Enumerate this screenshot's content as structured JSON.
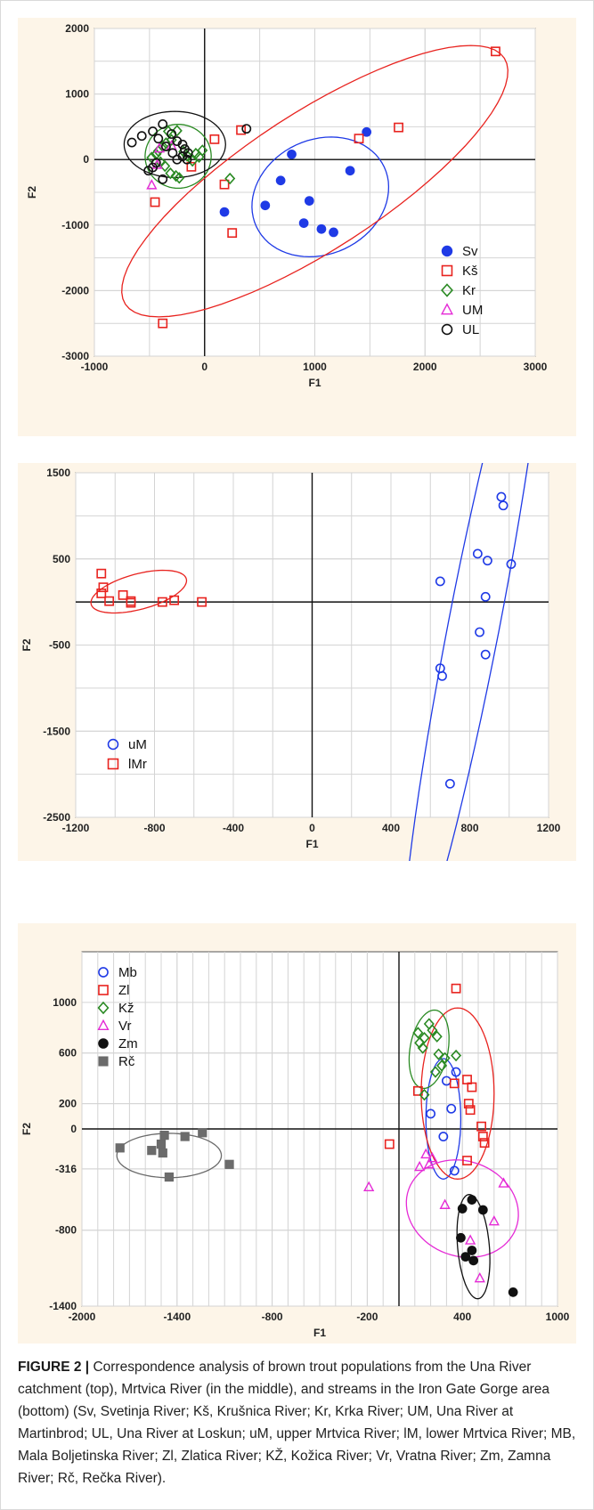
{
  "colors": {
    "Sv": "#1f3ae6",
    "Kš": "#e8231f",
    "Kr": "#2a8a23",
    "UM": "#e52bd6",
    "UL": "#111111",
    "uM": "#1f3ae6",
    "lMr": "#e8231f",
    "Mb": "#1f3ae6",
    "Zl": "#e8231f",
    "Kž": "#2a8a23",
    "Vr": "#e52bd6",
    "Zm": "#111111",
    "Rč": "#6b6b6b"
  },
  "chart_data": [
    {
      "type": "scatter",
      "xlabel": "F1",
      "ylabel": "F2",
      "xlim": [
        -1000,
        3000
      ],
      "ylim": [
        -3000,
        2000
      ],
      "xticks": [
        -1000,
        0,
        1000,
        2000,
        3000
      ],
      "yticks": [
        -3000,
        -2000,
        -1000,
        0,
        1000,
        2000
      ],
      "legend_position": "bottom-right",
      "series": [
        {
          "name": "Sv",
          "marker": "circle-filled",
          "points": [
            [
              1470,
              420
            ],
            [
              1320,
              -170
            ],
            [
              790,
              80
            ],
            [
              690,
              -320
            ],
            [
              550,
              -700
            ],
            [
              950,
              -630
            ],
            [
              900,
              -970
            ],
            [
              1060,
              -1060
            ],
            [
              1170,
              -1110
            ],
            [
              180,
              -800
            ]
          ],
          "ellipse": {
            "cx": 1050,
            "cy": -570,
            "rx": 640,
            "ry": 520,
            "angle": -25
          }
        },
        {
          "name": "Kš",
          "marker": "square-open",
          "points": [
            [
              2640,
              1650
            ],
            [
              1760,
              490
            ],
            [
              1400,
              320
            ],
            [
              330,
              450
            ],
            [
              90,
              310
            ],
            [
              -120,
              -110
            ],
            [
              -450,
              -650
            ],
            [
              180,
              -380
            ],
            [
              250,
              -1120
            ],
            [
              -380,
              -2500
            ]
          ],
          "ellipse": {
            "cx": 1000,
            "cy": -330,
            "rx": 2050,
            "ry": 620,
            "angle": -33
          }
        },
        {
          "name": "Kr",
          "marker": "diamond-open",
          "points": [
            [
              -250,
              440
            ],
            [
              -300,
              300
            ],
            [
              -350,
              250
            ],
            [
              -380,
              200
            ],
            [
              -420,
              130
            ],
            [
              -440,
              80
            ],
            [
              -480,
              30
            ],
            [
              -400,
              -40
            ],
            [
              -360,
              -100
            ],
            [
              -310,
              -210
            ],
            [
              -260,
              -250
            ],
            [
              -230,
              -280
            ],
            [
              -190,
              120
            ],
            [
              -160,
              60
            ],
            [
              -110,
              -20
            ],
            [
              -80,
              90
            ],
            [
              -50,
              40
            ],
            [
              -20,
              140
            ],
            [
              230,
              -290
            ],
            [
              -330,
              430
            ]
          ],
          "ellipse": {
            "cx": -240,
            "cy": 50,
            "rx": 300,
            "ry": 290,
            "angle": 0
          }
        },
        {
          "name": "UM",
          "marker": "triangle-open",
          "points": [
            [
              -480,
              -390
            ],
            [
              -430,
              -80
            ],
            [
              -410,
              170
            ],
            [
              -300,
              210
            ]
          ],
          "ellipse": null
        },
        {
          "name": "UL",
          "marker": "circle-open",
          "points": [
            [
              -660,
              260
            ],
            [
              -570,
              360
            ],
            [
              -470,
              430
            ],
            [
              -380,
              540
            ],
            [
              -300,
              390
            ],
            [
              -250,
              280
            ],
            [
              -200,
              230
            ],
            [
              -180,
              160
            ],
            [
              -150,
              100
            ],
            [
              -420,
              320
            ],
            [
              -350,
              200
            ],
            [
              -290,
              100
            ],
            [
              -200,
              50
            ],
            [
              -160,
              0
            ],
            [
              -440,
              -50
            ],
            [
              -470,
              -120
            ],
            [
              -380,
              -300
            ],
            [
              380,
              470
            ],
            [
              -510,
              -170
            ],
            [
              -250,
              0
            ]
          ],
          "ellipse": {
            "cx": -270,
            "cy": 230,
            "rx": 460,
            "ry": 300,
            "angle": 0
          }
        }
      ]
    },
    {
      "type": "scatter",
      "xlabel": "F1",
      "ylabel": "F2",
      "xlim": [
        -1200,
        1200
      ],
      "ylim": [
        -2500,
        1500
      ],
      "xticks": [
        -1200,
        -800,
        -400,
        0,
        400,
        800,
        1200
      ],
      "yticks": [
        -2500,
        -1500,
        -500,
        500,
        1500
      ],
      "legend_position": "bottom-left",
      "series": [
        {
          "name": "uM",
          "marker": "circle-open",
          "points": [
            [
              960,
              1220
            ],
            [
              970,
              1120
            ],
            [
              840,
              560
            ],
            [
              890,
              480
            ],
            [
              1010,
              440
            ],
            [
              650,
              240
            ],
            [
              880,
              60
            ],
            [
              850,
              -350
            ],
            [
              880,
              -610
            ],
            [
              650,
              -770
            ],
            [
              660,
              -860
            ],
            [
              700,
              -2110
            ]
          ],
          "ellipse": {
            "cx": 820,
            "cy": -280,
            "rx": 1750,
            "ry": 130,
            "angle": -79
          }
        },
        {
          "name": "lMr",
          "marker": "square-open",
          "points": [
            [
              -1070,
              330
            ],
            [
              -1060,
              170
            ],
            [
              -1070,
              100
            ],
            [
              -1030,
              10
            ],
            [
              -960,
              80
            ],
            [
              -920,
              10
            ],
            [
              -920,
              -10
            ],
            [
              -760,
              0
            ],
            [
              -700,
              20
            ],
            [
              -560,
              0
            ]
          ],
          "ellipse": {
            "cx": -880,
            "cy": 120,
            "rx": 250,
            "ry": 90,
            "angle": -15
          }
        }
      ]
    },
    {
      "type": "scatter",
      "xlabel": "F1",
      "ylabel": "F2",
      "xlim": [
        -2000,
        1000
      ],
      "ylim": [
        -1400,
        1400
      ],
      "xticks": [
        -2000,
        -1400,
        -800,
        -200,
        400,
        1000
      ],
      "ytick_labels": [
        "1000",
        "600",
        "200",
        "0",
        "-316",
        "-800",
        "-1400"
      ],
      "yticks": [
        1000,
        600,
        200,
        0,
        -316,
        -800,
        -1400
      ],
      "legend_position": "top-left",
      "series": [
        {
          "name": "Mb",
          "marker": "circle-open",
          "points": [
            [
              360,
              450
            ],
            [
              300,
              380
            ],
            [
              200,
              120
            ],
            [
              280,
              -60
            ],
            [
              350,
              -330
            ],
            [
              330,
              160
            ]
          ],
          "ellipse": {
            "cx": 280,
            "cy": 80,
            "rx": 110,
            "ry": 380,
            "angle": 0
          }
        },
        {
          "name": "Zl",
          "marker": "square-open",
          "points": [
            [
              360,
              1110
            ],
            [
              430,
              390
            ],
            [
              460,
              330
            ],
            [
              440,
              200
            ],
            [
              450,
              150
            ],
            [
              520,
              20
            ],
            [
              530,
              -60
            ],
            [
              540,
              -110
            ],
            [
              430,
              -250
            ],
            [
              -60,
              -120
            ],
            [
              120,
              300
            ],
            [
              350,
              360
            ]
          ],
          "ellipse": {
            "cx": 370,
            "cy": 280,
            "rx": 230,
            "ry": 540,
            "angle": 0
          }
        },
        {
          "name": "Kž",
          "marker": "diamond-open",
          "points": [
            [
              120,
              760
            ],
            [
              130,
              680
            ],
            [
              150,
              640
            ],
            [
              160,
              720
            ],
            [
              190,
              830
            ],
            [
              210,
              780
            ],
            [
              240,
              730
            ],
            [
              250,
              590
            ],
            [
              290,
              560
            ],
            [
              270,
              500
            ],
            [
              360,
              580
            ],
            [
              230,
              450
            ],
            [
              160,
              270
            ]
          ],
          "ellipse": {
            "cx": 190,
            "cy": 630,
            "rx": 120,
            "ry": 250,
            "angle": 10
          }
        },
        {
          "name": "Vr",
          "marker": "triangle-open",
          "points": [
            [
              -190,
              -460
            ],
            [
              130,
              -300
            ],
            [
              210,
              -230
            ],
            [
              190,
              -280
            ],
            [
              290,
              -600
            ],
            [
              450,
              -880
            ],
            [
              600,
              -730
            ],
            [
              660,
              -430
            ],
            [
              510,
              -1180
            ],
            [
              170,
              -200
            ]
          ],
          "ellipse": {
            "cx": 400,
            "cy": -630,
            "rx": 360,
            "ry": 300,
            "angle": 20
          }
        },
        {
          "name": "Zm",
          "marker": "circle-filled",
          "points": [
            [
              400,
              -630
            ],
            [
              460,
              -560
            ],
            [
              530,
              -640
            ],
            [
              390,
              -860
            ],
            [
              460,
              -960
            ],
            [
              470,
              -1040
            ],
            [
              420,
              -1010
            ],
            [
              720,
              -1290
            ]
          ],
          "ellipse": {
            "cx": 470,
            "cy": -930,
            "rx": 100,
            "ry": 330,
            "angle": -5
          }
        },
        {
          "name": "Rč",
          "marker": "square-filled",
          "points": [
            [
              -1760,
              -150
            ],
            [
              -1560,
              -170
            ],
            [
              -1500,
              -120
            ],
            [
              -1480,
              -50
            ],
            [
              -1450,
              -380
            ],
            [
              -1350,
              -60
            ],
            [
              -1240,
              -30
            ],
            [
              -1070,
              -280
            ],
            [
              -1490,
              -190
            ]
          ],
          "ellipse": {
            "cx": -1450,
            "cy": -210,
            "rx": 330,
            "ry": 140,
            "angle": 0
          }
        }
      ]
    }
  ],
  "caption": {
    "label": "FIGURE 2 |",
    "text": " Correspondence analysis of brown trout populations from the Una River catchment (top), Mrtvica River (in the middle), and streams in the Iron Gate Gorge area (bottom) (Sv, Svetinja River; Kš, Krušnica River; Kr, Krka River; UM, Una River at Martinbrod; UL, Una River at Loskun; uM, upper Mrtvica River; lM, lower Mrtvica River; MB, Mala Boljetinska River; Zl, Zlatica River; KŽ, Kožica River; Vr, Vratna River; Zm, Zamna River; Rč, Rečka River)."
  }
}
